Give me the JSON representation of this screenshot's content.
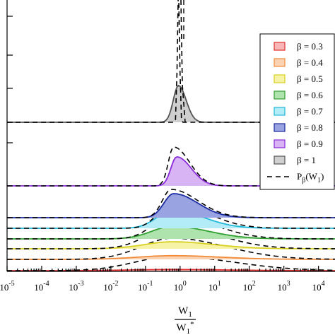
{
  "chart_data": {
    "type": "area",
    "x_scale": "log",
    "xlim": [
      1e-05,
      30000
    ],
    "x_ticks": [
      {
        "value": 1e-05,
        "base": "10",
        "exp": "-5"
      },
      {
        "value": 0.0001,
        "base": "10",
        "exp": "-4"
      },
      {
        "value": 0.001,
        "base": "10",
        "exp": "-3"
      },
      {
        "value": 0.01,
        "base": "10",
        "exp": "-2"
      },
      {
        "value": 0.1,
        "base": "10",
        "exp": "-1"
      },
      {
        "value": 1,
        "base": "10",
        "exp": "0"
      },
      {
        "value": 10,
        "base": "10",
        "exp": "1"
      },
      {
        "value": 100,
        "base": "10",
        "exp": "2"
      },
      {
        "value": 1000,
        "base": "10",
        "exp": "3"
      },
      {
        "value": 10000,
        "base": "10",
        "exp": "4"
      }
    ],
    "xlabel": {
      "numerator": "W",
      "numerator_sub": "1",
      "denominator": "W",
      "denominator_sub": "1",
      "denominator_sup": "*"
    },
    "legend": {
      "placement": "right",
      "prefix": "β = ",
      "theory_label": {
        "main": "P",
        "sub": "β",
        "arg": "(W",
        "arg_sub": "1",
        "close": ")"
      }
    },
    "series": [
      {
        "name": "0.3",
        "beta": 0.3,
        "fill": "#f7b5b5",
        "edge": "#e03030",
        "peak_x": 0.6,
        "height": 0.12,
        "width_left": 1.2,
        "width_right": 1.6
      },
      {
        "name": "0.4",
        "beta": 0.4,
        "fill": "#fbd3b3",
        "edge": "#f08c3c",
        "peak_x": 0.6,
        "height": 0.26,
        "width_left": 1.0,
        "width_right": 1.4
      },
      {
        "name": "0.5",
        "beta": 0.5,
        "fill": "#f6f2a6",
        "edge": "#d8d020",
        "peak_x": 0.6,
        "height": 0.45,
        "width_left": 0.8,
        "width_right": 1.2
      },
      {
        "name": "0.6",
        "beta": 0.6,
        "fill": "#aee3ae",
        "edge": "#2fa02f",
        "peak_x": 0.6,
        "height": 0.68,
        "width_left": 0.6,
        "width_right": 1.05
      },
      {
        "name": "0.7",
        "beta": 0.7,
        "fill": "#b3ecf7",
        "edge": "#20b8d8",
        "peak_x": 0.6,
        "height": 0.85,
        "width_left": 0.45,
        "width_right": 0.9
      },
      {
        "name": "0.8",
        "beta": 0.8,
        "fill": "#9aa3e2",
        "edge": "#1a2aa0",
        "peak_x": 0.65,
        "height": 1.0,
        "width_left": 0.28,
        "width_right": 0.7
      },
      {
        "name": "0.9",
        "beta": 0.9,
        "fill": "#d8b4f4",
        "edge": "#8a2ad8",
        "peak_x": 0.8,
        "height": 1.0,
        "width_left": 0.17,
        "width_right": 0.42
      },
      {
        "name": "1",
        "beta": 1.0,
        "fill": "#cfcfcf",
        "edge": "#555555",
        "peak_x": 0.9,
        "height": 1.0,
        "width_left": 0.15,
        "width_right": 0.22
      }
    ]
  }
}
